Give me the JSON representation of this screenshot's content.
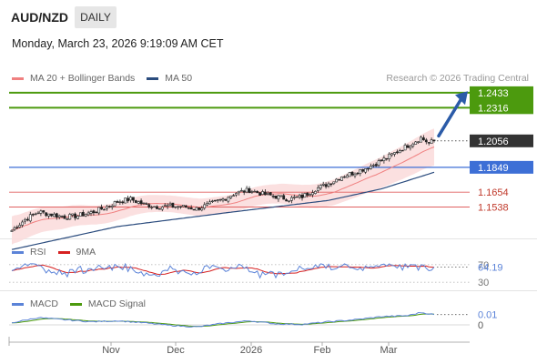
{
  "header": {
    "symbol": "AUD/NZD",
    "timeframe": "DAILY",
    "timestamp": "Monday, March 23, 2026 9:19:09 AM CET",
    "credit": "Research © 2026 Trading Central"
  },
  "colors": {
    "bollinger": "#f08080",
    "bollinger_fill": "#fadada",
    "ma50": "#2b4c7e",
    "resistance": "#4c9a0e",
    "pivot": "#3d6fd6",
    "support": "#e06060",
    "support_text": "#c0392b",
    "price_tag": "#333333",
    "arrow": "#2b5ba8",
    "rsi": "#5b83d8",
    "rsi_ma": "#d62020",
    "macd": "#5b83d8",
    "macd_signal": "#4c9a0e",
    "candle": "#222222",
    "bar_up": "#444444"
  },
  "chart_data": [
    {
      "type": "candlestick",
      "legend": [
        {
          "label": "MA 20 + Bollinger Bands",
          "color": "#f08080"
        },
        {
          "label": "MA 50",
          "color": "#2b4c7e"
        }
      ],
      "x_axis_labels": [
        "Nov",
        "Dec",
        "2026",
        "Feb",
        "Mar"
      ],
      "ylim": [
        1.1335,
        1.2475
      ],
      "current_price": 1.2056,
      "levels": [
        {
          "value": 1.2433,
          "label": "1.2433",
          "kind": "resistance"
        },
        {
          "value": 1.2316,
          "label": "1.2316",
          "kind": "resistance"
        },
        {
          "value": 1.1849,
          "label": "1.1849",
          "kind": "pivot"
        },
        {
          "value": 1.1654,
          "label": "1.1654",
          "kind": "support"
        },
        {
          "value": 1.1538,
          "label": "1.1538",
          "kind": "support"
        }
      ],
      "close_anchors": [
        [
          0,
          1.1355
        ],
        [
          5,
          1.144
        ],
        [
          10,
          1.15
        ],
        [
          15,
          1.148
        ],
        [
          20,
          1.146
        ],
        [
          25,
          1.147
        ],
        [
          30,
          1.1495
        ],
        [
          35,
          1.153
        ],
        [
          40,
          1.158
        ],
        [
          45,
          1.16
        ],
        [
          50,
          1.156
        ],
        [
          55,
          1.154
        ],
        [
          60,
          1.1545
        ],
        [
          65,
          1.154
        ],
        [
          70,
          1.1525
        ],
        [
          75,
          1.156
        ],
        [
          80,
          1.16
        ],
        [
          85,
          1.165
        ],
        [
          90,
          1.167
        ],
        [
          95,
          1.164
        ],
        [
          100,
          1.162
        ],
        [
          105,
          1.16
        ],
        [
          110,
          1.162
        ],
        [
          115,
          1.168
        ],
        [
          120,
          1.172
        ],
        [
          125,
          1.178
        ],
        [
          130,
          1.181
        ],
        [
          135,
          1.185
        ],
        [
          140,
          1.19
        ],
        [
          145,
          1.196
        ],
        [
          150,
          1.202
        ],
        [
          155,
          1.208
        ],
        [
          158,
          1.204
        ],
        [
          160,
          1.2056
        ]
      ],
      "ma50_anchors": [
        [
          0,
          1.1205
        ],
        [
          40,
          1.1385
        ],
        [
          80,
          1.149
        ],
        [
          120,
          1.159
        ],
        [
          140,
          1.168
        ],
        [
          160,
          1.181
        ]
      ],
      "bb_width_anchors": [
        [
          0,
          0.011
        ],
        [
          30,
          0.0075
        ],
        [
          60,
          0.0065
        ],
        [
          100,
          0.0075
        ],
        [
          130,
          0.011
        ],
        [
          160,
          0.0145
        ]
      ]
    },
    {
      "type": "line",
      "legend": [
        {
          "label": "RSI",
          "color": "#5b83d8"
        },
        {
          "label": "9MA",
          "color": "#d62020"
        }
      ],
      "ylim": [
        20,
        80
      ],
      "rsi_last": 64.19,
      "value_label": "64.19",
      "ref_levels": [
        {
          "value": 70,
          "label": "70"
        },
        {
          "value": 30,
          "label": "30"
        }
      ]
    },
    {
      "type": "line",
      "legend": [
        {
          "label": "MACD",
          "color": "#5b83d8"
        },
        {
          "label": "MACD Signal",
          "color": "#4c9a0e"
        }
      ],
      "ylim": [
        -0.015,
        0.015
      ],
      "macd_last": 0.01,
      "value_label": "0.01",
      "zero_label": "0",
      "macd_anchors": [
        [
          0,
          0.002
        ],
        [
          10,
          0.007
        ],
        [
          20,
          0.005
        ],
        [
          30,
          0.003
        ],
        [
          40,
          0.004
        ],
        [
          50,
          0.002
        ],
        [
          60,
          -0.0005
        ],
        [
          70,
          -0.002
        ],
        [
          80,
          0.0015
        ],
        [
          90,
          0.004
        ],
        [
          100,
          0.001
        ],
        [
          110,
          0.0005
        ],
        [
          120,
          0.003
        ],
        [
          130,
          0.005
        ],
        [
          140,
          0.008
        ],
        [
          150,
          0.009
        ],
        [
          155,
          0.012
        ],
        [
          160,
          0.01
        ]
      ]
    }
  ]
}
